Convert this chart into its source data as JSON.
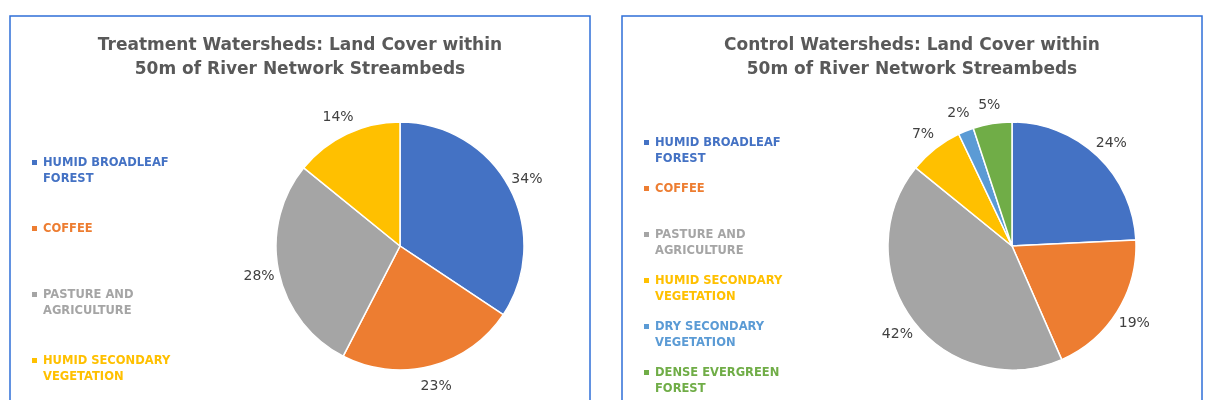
{
  "chart_data": [
    {
      "type": "pie",
      "title": "Treatment Watersheds: Land Cover within 50m of River Network Streambeds",
      "categories": [
        "HUMID BROADLEAF FOREST",
        "COFFEE",
        "PASTURE AND AGRICULTURE",
        "HUMID SECONDARY VEGETATION"
      ],
      "values": [
        34,
        23,
        28,
        14
      ],
      "colors": [
        "#4472c4",
        "#ed7d31",
        "#a5a5a5",
        "#ffc000"
      ],
      "legend": "left",
      "value_labels": [
        "34%",
        "23%",
        "28%",
        "14%"
      ]
    },
    {
      "type": "pie",
      "title": "Control Watersheds: Land Cover within 50m of River Network Streambeds",
      "categories": [
        "HUMID BROADLEAF FOREST",
        "COFFEE",
        "PASTURE AND AGRICULTURE",
        "HUMID SECONDARY VEGETATION",
        "DRY SECONDARY VEGETATION",
        "DENSE EVERGREEN FOREST"
      ],
      "values": [
        24,
        19,
        42,
        7,
        2,
        5
      ],
      "colors": [
        "#4472c4",
        "#ed7d31",
        "#a5a5a5",
        "#ffc000",
        "#5b9bd5",
        "#70ad47"
      ],
      "legend": "left",
      "value_labels": [
        "24%",
        "19%",
        "42%",
        "7%",
        "2%",
        "5%"
      ]
    }
  ]
}
